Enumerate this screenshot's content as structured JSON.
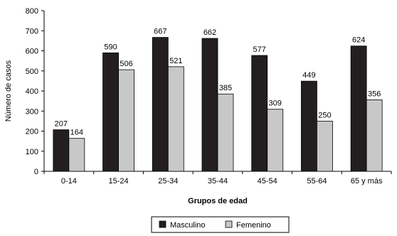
{
  "chart_data": {
    "type": "bar",
    "categories": [
      "0-14",
      "15-24",
      "25-34",
      "35-44",
      "45-54",
      "55-64",
      "65 y más"
    ],
    "series": [
      {
        "name": "Masculino",
        "values": [
          207,
          590,
          667,
          662,
          577,
          449,
          624
        ],
        "color": "#231f20"
      },
      {
        "name": "Femenino",
        "values": [
          164,
          506,
          521,
          385,
          309,
          250,
          356
        ],
        "color": "#c8c8c8"
      }
    ],
    "title": "",
    "xlabel": "Grupos de edad",
    "ylabel": "Número de casos",
    "ylim": [
      0,
      800
    ],
    "yticks": [
      0,
      100,
      200,
      300,
      400,
      500,
      600,
      700,
      800
    ],
    "grid": false,
    "legend": "bottom"
  }
}
